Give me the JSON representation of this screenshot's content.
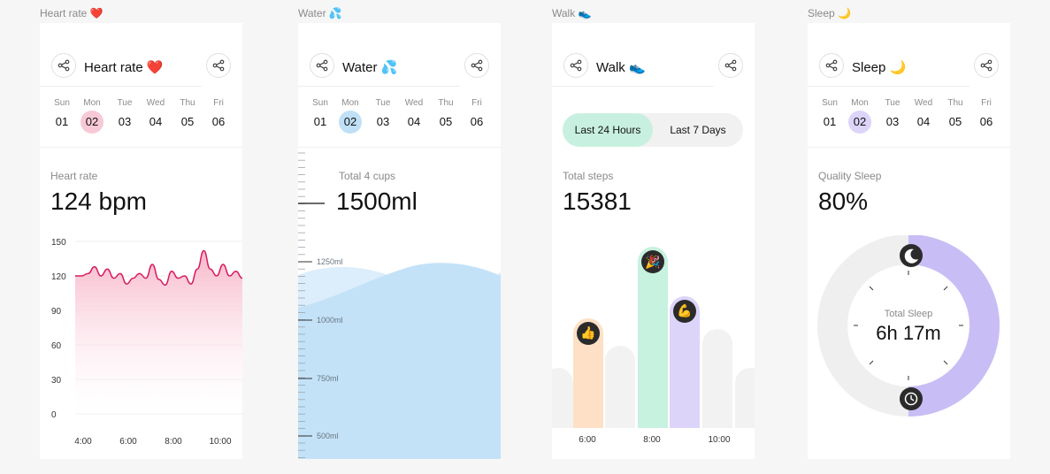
{
  "frames": [
    {
      "frame_label": "Heart rate ❤️",
      "title": "Heart rate ❤️",
      "week": [
        {
          "day": "Sun",
          "date": "01"
        },
        {
          "day": "Mon",
          "date": "02"
        },
        {
          "day": "Tue",
          "date": "03"
        },
        {
          "day": "Wed",
          "date": "04"
        },
        {
          "day": "Thu",
          "date": "05"
        },
        {
          "day": "Fri",
          "date": "06"
        }
      ],
      "selected_date": "02",
      "accent": "#f7c9d6",
      "metric_label": "Heart rate",
      "metric_value": "124 bpm",
      "chart_data": {
        "type": "area",
        "y_ticks": [
          "150",
          "120",
          "90",
          "60",
          "30",
          "0"
        ],
        "ylim": [
          0,
          150
        ],
        "x_ticks": [
          "4:00",
          "6:00",
          "8:00",
          "10:00"
        ],
        "x": [
          "3:45",
          "4:15",
          "4:30",
          "4:45",
          "5:00",
          "5:15",
          "5:30",
          "5:45",
          "6:00",
          "6:15",
          "6:30",
          "6:45",
          "7:00",
          "7:15",
          "7:30",
          "7:45",
          "8:00",
          "8:15",
          "8:30",
          "8:45",
          "9:00",
          "9:15",
          "9:30",
          "9:45",
          "10:00",
          "10:15",
          "10:30"
        ],
        "values": [
          120,
          120,
          122,
          128,
          120,
          126,
          118,
          122,
          113,
          118,
          122,
          118,
          130,
          117,
          112,
          124,
          118,
          120,
          113,
          126,
          142,
          126,
          120,
          130,
          120,
          124,
          118
        ],
        "color": "#d81b60"
      }
    },
    {
      "frame_label": "Water 💦",
      "title": "Water 💦",
      "week": [
        {
          "day": "Sun",
          "date": "01"
        },
        {
          "day": "Mon",
          "date": "02"
        },
        {
          "day": "Tue",
          "date": "03"
        },
        {
          "day": "Wed",
          "date": "04"
        },
        {
          "day": "Thu",
          "date": "05"
        },
        {
          "day": "Fri",
          "date": "06"
        }
      ],
      "selected_date": "02",
      "accent": "#bfe0f6",
      "metric_label": "Total 4 cups",
      "metric_value": "1500ml",
      "ruler_labels": [
        "1250ml",
        "1000ml",
        "750ml",
        "500ml"
      ],
      "fill_color": "#c3e2f8",
      "fill_level_ml": 1250
    },
    {
      "frame_label": "Walk 👟",
      "title": "Walk 👟",
      "segments": [
        "Last 24 Hours",
        "Last 7 Days"
      ],
      "active_segment": "Last 24 Hours",
      "metric_label": "Total steps",
      "metric_value": "15381",
      "chart_data": {
        "type": "bar",
        "x_ticks": [
          "6:00",
          "8:00",
          "10:00"
        ],
        "bars": [
          {
            "value": 55,
            "color": "#f2f2f2",
            "emoji": ""
          },
          {
            "value": 100,
            "color": "#fde0c6",
            "emoji": "👍"
          },
          {
            "value": 75,
            "color": "#f2f2f2",
            "emoji": ""
          },
          {
            "value": 165,
            "color": "#c6f2df",
            "emoji": "🎉"
          },
          {
            "value": 120,
            "color": "#ddd4fa",
            "emoji": "💪"
          },
          {
            "value": 90,
            "color": "#f2f2f2",
            "emoji": ""
          },
          {
            "value": 55,
            "color": "#f2f2f2",
            "emoji": ""
          }
        ]
      }
    },
    {
      "frame_label": "Sleep 🌙",
      "title": "Sleep 🌙",
      "week": [
        {
          "day": "Sun",
          "date": "01"
        },
        {
          "day": "Mon",
          "date": "02"
        },
        {
          "day": "Tue",
          "date": "03"
        },
        {
          "day": "Wed",
          "date": "04"
        },
        {
          "day": "Thu",
          "date": "05"
        },
        {
          "day": "Fri",
          "date": "06"
        }
      ],
      "selected_date": "02",
      "accent": "#ddd4fa",
      "metric_label": "Quality Sleep",
      "metric_value": "80%",
      "dial_label": "Total Sleep",
      "dial_value": "6h 17m",
      "arc_color": "#c9bdf6",
      "track_color": "#efefef"
    }
  ],
  "icons": {
    "share": "share-icon",
    "moon": "moon-icon",
    "clock": "clock-icon"
  }
}
